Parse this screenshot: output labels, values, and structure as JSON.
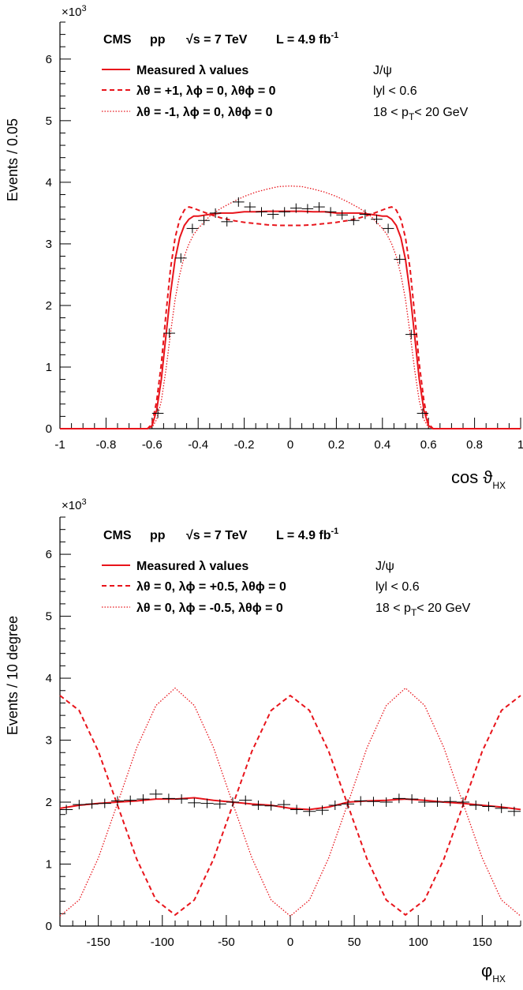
{
  "chart_data": [
    {
      "type": "line",
      "experiment": "CMS",
      "collision": "pp",
      "energy_prefix": "√s = 7 TeV",
      "lumi_prefix": "L = 4.9 fb",
      "lumi_sup": "-1",
      "exponent_base": "×10",
      "exponent_power": "3",
      "ylabel": "Events / 0.05",
      "xlabel_main": "cos ϑ",
      "xlabel_sub": "HX",
      "state": "J/ψ",
      "rapidity_cut": "lyl < 0.6",
      "pt_left": "18 < p",
      "pt_sub": "T",
      "pt_right": "< 20 GeV",
      "xlim": [
        -1,
        1
      ],
      "ylim": [
        0,
        6.6
      ],
      "xticks": [
        "-1",
        "-0.8",
        "-0.6",
        "-0.4",
        "-0.2",
        "0",
        "0.2",
        "0.4",
        "0.6",
        "0.8",
        "1"
      ],
      "yticks": [
        "0",
        "1",
        "2",
        "3",
        "4",
        "5",
        "6"
      ],
      "legend": [
        {
          "style": "solid",
          "text": "Measured λ values"
        },
        {
          "style": "dashed",
          "text": "λθ = +1,  λϕ = 0,  λθϕ = 0"
        },
        {
          "style": "dotted",
          "text": "λθ = -1,  λϕ = 0,  λθϕ = 0"
        }
      ],
      "series": [
        {
          "style": "solid",
          "x": [
            -1,
            -0.62,
            -0.6,
            -0.58,
            -0.56,
            -0.54,
            -0.52,
            -0.5,
            -0.48,
            -0.46,
            -0.44,
            -0.42,
            -0.4,
            -0.35,
            -0.3,
            -0.25,
            -0.2,
            -0.15,
            -0.1,
            -0.05,
            0,
            0.05,
            0.1,
            0.15,
            0.2,
            0.25,
            0.3,
            0.35,
            0.4,
            0.42,
            0.44,
            0.46,
            0.48,
            0.5,
            0.52,
            0.54,
            0.56,
            0.58,
            0.6,
            0.62,
            1
          ],
          "values": [
            0,
            0,
            0.05,
            0.3,
            0.8,
            1.5,
            2.2,
            2.75,
            3.1,
            3.3,
            3.4,
            3.45,
            3.45,
            3.48,
            3.5,
            3.5,
            3.52,
            3.52,
            3.53,
            3.53,
            3.53,
            3.53,
            3.52,
            3.52,
            3.5,
            3.5,
            3.5,
            3.48,
            3.45,
            3.45,
            3.4,
            3.3,
            3.1,
            2.75,
            2.2,
            1.5,
            0.8,
            0.3,
            0.05,
            0,
            0
          ]
        },
        {
          "style": "dashed",
          "x": [
            -1,
            -0.62,
            -0.6,
            -0.58,
            -0.56,
            -0.54,
            -0.52,
            -0.5,
            -0.48,
            -0.46,
            -0.44,
            -0.42,
            -0.4,
            -0.35,
            -0.3,
            -0.25,
            -0.2,
            -0.15,
            -0.1,
            -0.05,
            0,
            0.05,
            0.1,
            0.15,
            0.2,
            0.25,
            0.3,
            0.35,
            0.4,
            0.42,
            0.44,
            0.46,
            0.48,
            0.5,
            0.52,
            0.54,
            0.56,
            0.58,
            0.6,
            0.62,
            1
          ],
          "values": [
            0,
            0,
            0.08,
            0.45,
            1.05,
            1.85,
            2.6,
            3.1,
            3.4,
            3.55,
            3.6,
            3.58,
            3.55,
            3.48,
            3.42,
            3.38,
            3.35,
            3.33,
            3.31,
            3.3,
            3.3,
            3.3,
            3.31,
            3.33,
            3.35,
            3.38,
            3.42,
            3.48,
            3.55,
            3.58,
            3.6,
            3.55,
            3.4,
            3.1,
            2.6,
            1.85,
            1.05,
            0.45,
            0.08,
            0,
            0
          ]
        },
        {
          "style": "dotted",
          "x": [
            -1,
            -0.62,
            -0.6,
            -0.58,
            -0.56,
            -0.54,
            -0.52,
            -0.5,
            -0.48,
            -0.46,
            -0.44,
            -0.42,
            -0.4,
            -0.35,
            -0.3,
            -0.25,
            -0.2,
            -0.15,
            -0.1,
            -0.05,
            0,
            0.05,
            0.1,
            0.15,
            0.2,
            0.25,
            0.3,
            0.35,
            0.4,
            0.42,
            0.44,
            0.46,
            0.48,
            0.5,
            0.52,
            0.54,
            0.56,
            0.58,
            0.6,
            0.62,
            1
          ],
          "values": [
            0,
            0,
            0.02,
            0.15,
            0.45,
            0.95,
            1.55,
            2.1,
            2.5,
            2.8,
            3.0,
            3.15,
            3.25,
            3.45,
            3.58,
            3.68,
            3.77,
            3.84,
            3.89,
            3.93,
            3.94,
            3.93,
            3.89,
            3.84,
            3.77,
            3.68,
            3.58,
            3.45,
            3.25,
            3.15,
            3.0,
            2.8,
            2.5,
            2.1,
            1.55,
            0.95,
            0.45,
            0.15,
            0.02,
            0,
            0
          ]
        }
      ],
      "data_points": {
        "x": [
          -0.575,
          -0.525,
          -0.475,
          -0.425,
          -0.375,
          -0.325,
          -0.275,
          -0.225,
          -0.175,
          -0.125,
          -0.075,
          -0.025,
          0.025,
          0.075,
          0.125,
          0.175,
          0.225,
          0.275,
          0.325,
          0.375,
          0.425,
          0.475,
          0.525,
          0.575
        ],
        "y": [
          0.25,
          1.55,
          2.77,
          3.25,
          3.38,
          3.5,
          3.36,
          3.68,
          3.6,
          3.52,
          3.48,
          3.52,
          3.58,
          3.57,
          3.6,
          3.52,
          3.47,
          3.38,
          3.48,
          3.4,
          3.25,
          2.75,
          1.53,
          0.25
        ]
      }
    },
    {
      "type": "line",
      "experiment": "CMS",
      "collision": "pp",
      "energy_prefix": "√s = 7 TeV",
      "lumi_prefix": "L = 4.9 fb",
      "lumi_sup": "-1",
      "exponent_base": "×10",
      "exponent_power": "3",
      "ylabel": "Events / 10 degree",
      "xlabel_main": "φ",
      "xlabel_sub": "HX",
      "state": "J/ψ",
      "rapidity_cut": "lyl < 0.6",
      "pt_left": "18 < p",
      "pt_sub": "T",
      "pt_right": "< 20 GeV",
      "xlim": [
        -180,
        180
      ],
      "ylim": [
        0,
        6.6
      ],
      "xticks": [
        "-150",
        "-100",
        "-50",
        "0",
        "50",
        "100",
        "150"
      ],
      "yticks": [
        "0",
        "1",
        "2",
        "3",
        "4",
        "5",
        "6"
      ],
      "legend": [
        {
          "style": "solid",
          "text": "Measured λ values"
        },
        {
          "style": "dashed",
          "text": "λθ = 0,  λϕ = +0.5,  λθϕ = 0"
        },
        {
          "style": "dotted",
          "text": "λθ = 0,  λϕ = -0.5,  λθϕ = 0"
        }
      ],
      "series": [
        {
          "style": "solid",
          "x": [
            -180,
            -165,
            -150,
            -135,
            -120,
            -105,
            -90,
            -75,
            -60,
            -45,
            -30,
            -15,
            0,
            15,
            30,
            45,
            60,
            75,
            90,
            105,
            120,
            135,
            150,
            165,
            180
          ],
          "values": [
            1.9,
            1.95,
            1.98,
            2.0,
            2.02,
            2.05,
            2.05,
            2.07,
            2.03,
            2.0,
            1.97,
            1.95,
            1.9,
            1.88,
            1.92,
            2.0,
            2.02,
            2.03,
            2.05,
            2.03,
            2.0,
            1.98,
            1.95,
            1.92,
            1.88
          ]
        },
        {
          "style": "dashed",
          "x": [
            -180,
            -165,
            -150,
            -135,
            -120,
            -105,
            -90,
            -75,
            -60,
            -45,
            -30,
            -15,
            0,
            15,
            30,
            45,
            60,
            75,
            90,
            105,
            120,
            135,
            150,
            165,
            180
          ],
          "values": [
            3.72,
            3.48,
            2.82,
            1.95,
            1.08,
            0.42,
            0.18,
            0.42,
            1.08,
            1.95,
            2.82,
            3.48,
            3.72,
            3.48,
            2.82,
            1.95,
            1.08,
            0.42,
            0.18,
            0.42,
            1.08,
            1.95,
            2.82,
            3.48,
            3.72
          ]
        },
        {
          "style": "dotted",
          "x": [
            -180,
            -165,
            -150,
            -135,
            -120,
            -105,
            -90,
            -75,
            -60,
            -45,
            -30,
            -15,
            0,
            15,
            30,
            45,
            60,
            75,
            90,
            105,
            120,
            135,
            150,
            165,
            180
          ],
          "values": [
            0.16,
            0.42,
            1.1,
            1.98,
            2.88,
            3.56,
            3.84,
            3.56,
            2.88,
            1.98,
            1.1,
            0.42,
            0.16,
            0.42,
            1.1,
            1.98,
            2.88,
            3.56,
            3.84,
            3.56,
            2.88,
            1.98,
            1.1,
            0.42,
            0.16
          ]
        }
      ],
      "data_points": {
        "x": [
          -175,
          -165,
          -155,
          -145,
          -135,
          -125,
          -115,
          -105,
          -95,
          -85,
          -75,
          -65,
          -55,
          -45,
          -35,
          -25,
          -15,
          -5,
          5,
          15,
          25,
          35,
          45,
          55,
          65,
          75,
          85,
          95,
          105,
          115,
          125,
          135,
          145,
          155,
          165,
          175
        ],
        "y": [
          1.88,
          1.96,
          1.97,
          1.98,
          2.02,
          2.03,
          2.05,
          2.13,
          2.06,
          2.05,
          1.99,
          1.98,
          1.97,
          2.0,
          2.03,
          1.95,
          1.94,
          1.96,
          1.88,
          1.85,
          1.87,
          1.95,
          1.97,
          2.02,
          2.01,
          2.0,
          2.06,
          2.05,
          2.0,
          2.0,
          2.01,
          2.0,
          1.95,
          1.93,
          1.9,
          1.85
        ]
      }
    }
  ]
}
